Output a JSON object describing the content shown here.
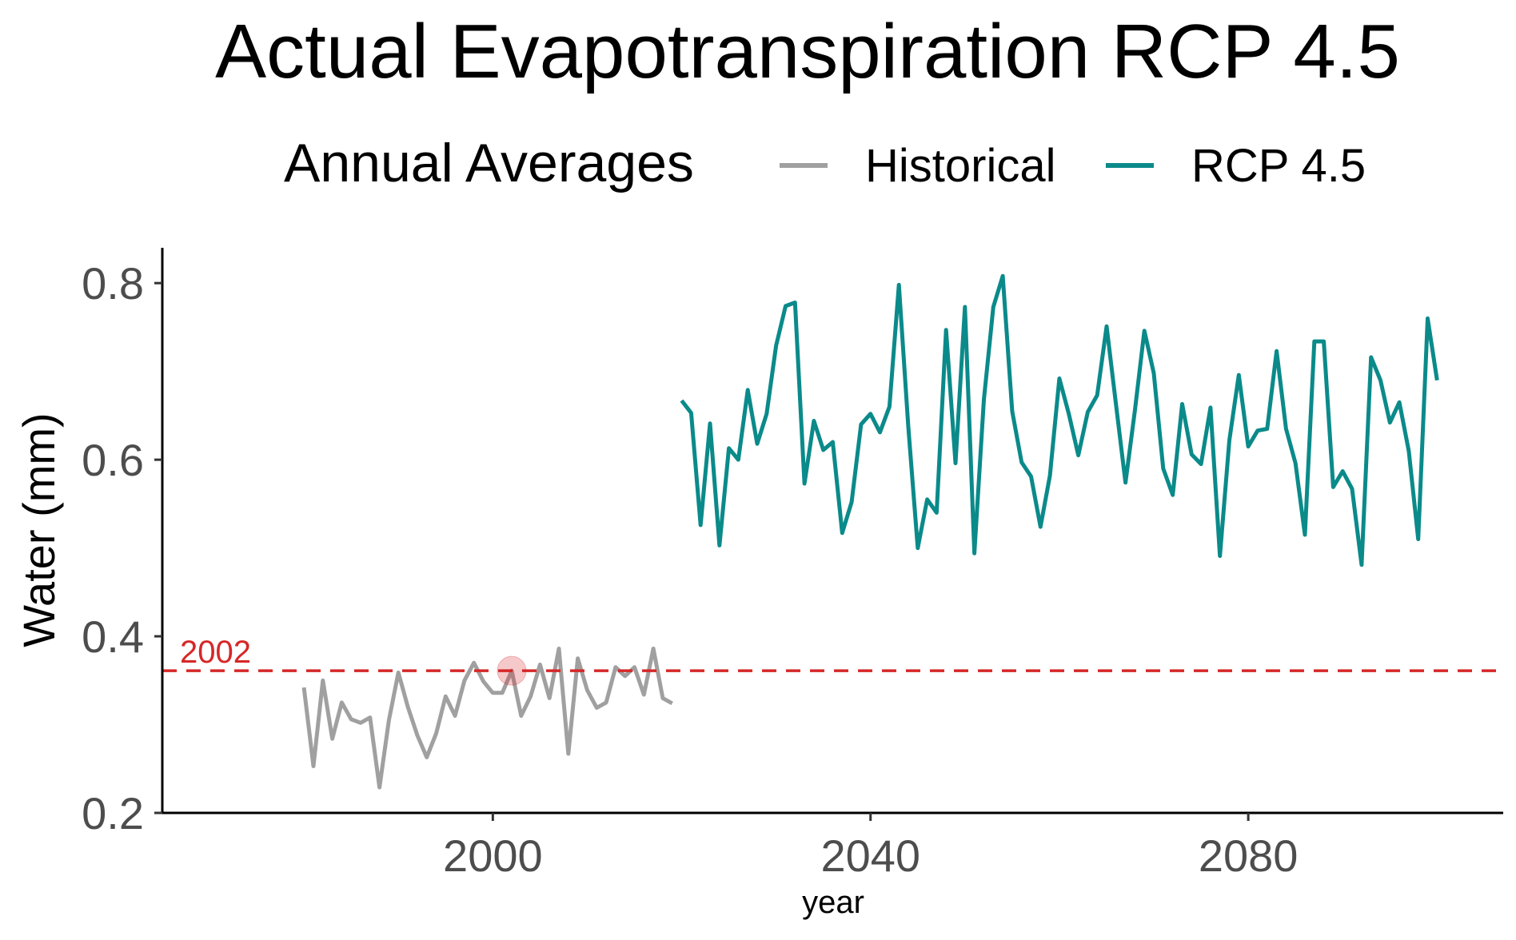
{
  "chart_data": {
    "type": "line",
    "title": "Actual Evapotranspiration RCP 4.5",
    "xlabel": "year",
    "ylabel": "Water (mm)",
    "xlim": [
      1965,
      2107
    ],
    "ylim": [
      0.2,
      0.84
    ],
    "x_ticks": [
      2000,
      2040,
      2080
    ],
    "y_ticks": [
      0.2,
      0.4,
      0.6,
      0.8
    ],
    "x_tick_labels": [
      "2000",
      "2040",
      "2080"
    ],
    "y_tick_labels": [
      "0.2",
      "0.4",
      "0.6",
      "0.8"
    ],
    "grid": false,
    "legend": {
      "title": "Annual Averages",
      "position": "top",
      "entries": [
        {
          "label": "Historical",
          "color": "#a0a0a0"
        },
        {
          "label": "RCP 4.5",
          "color": "#0b8a8a"
        }
      ]
    },
    "reference_line": {
      "y": 0.361,
      "label": "2002",
      "color": "#d62728",
      "style": "dashed"
    },
    "highlight_point": {
      "x": 2002,
      "y": 0.361,
      "color": "#d62728"
    },
    "series": [
      {
        "name": "Historical",
        "color": "#a0a0a0",
        "x": [
          1980,
          1981,
          1982,
          1983,
          1984,
          1985,
          1986,
          1987,
          1988,
          1989,
          1990,
          1991,
          1992,
          1993,
          1994,
          1995,
          1996,
          1997,
          1998,
          1999,
          2000,
          2001,
          2002,
          2003,
          2004,
          2005,
          2006,
          2007,
          2008,
          2009,
          2010,
          2011,
          2012,
          2013,
          2014,
          2015,
          2016,
          2017,
          2018,
          2019
        ],
        "y": [
          0.342,
          0.253,
          0.35,
          0.284,
          0.325,
          0.306,
          0.302,
          0.308,
          0.229,
          0.305,
          0.359,
          0.32,
          0.288,
          0.263,
          0.29,
          0.332,
          0.31,
          0.35,
          0.37,
          0.349,
          0.336,
          0.336,
          0.361,
          0.31,
          0.332,
          0.368,
          0.33,
          0.386,
          0.267,
          0.375,
          0.339,
          0.319,
          0.325,
          0.365,
          0.355,
          0.365,
          0.334,
          0.386,
          0.33,
          0.324
        ]
      },
      {
        "name": "RCP 4.5",
        "color": "#0b8a8a",
        "x": [
          2020,
          2021,
          2022,
          2023,
          2024,
          2025,
          2026,
          2027,
          2028,
          2029,
          2030,
          2031,
          2032,
          2033,
          2034,
          2035,
          2036,
          2037,
          2038,
          2039,
          2040,
          2041,
          2042,
          2043,
          2044,
          2045,
          2046,
          2047,
          2048,
          2049,
          2050,
          2051,
          2052,
          2053,
          2054,
          2055,
          2056,
          2057,
          2058,
          2059,
          2060,
          2061,
          2062,
          2063,
          2064,
          2065,
          2066,
          2067,
          2068,
          2069,
          2070,
          2071,
          2072,
          2073,
          2074,
          2075,
          2076,
          2077,
          2078,
          2079,
          2080,
          2081,
          2082,
          2083,
          2084,
          2085,
          2086,
          2087,
          2088,
          2089,
          2090,
          2091,
          2092,
          2093,
          2094,
          2095,
          2096,
          2097,
          2098,
          2099,
          2100
        ],
        "y": [
          0.667,
          0.653,
          0.526,
          0.641,
          0.503,
          0.613,
          0.6,
          0.679,
          0.618,
          0.652,
          0.729,
          0.774,
          0.778,
          0.573,
          0.644,
          0.611,
          0.62,
          0.517,
          0.552,
          0.64,
          0.652,
          0.631,
          0.66,
          0.798,
          0.637,
          0.5,
          0.555,
          0.54,
          0.747,
          0.596,
          0.773,
          0.494,
          0.668,
          0.773,
          0.808,
          0.655,
          0.597,
          0.581,
          0.524,
          0.582,
          0.692,
          0.652,
          0.605,
          0.654,
          0.673,
          0.751,
          0.662,
          0.574,
          0.656,
          0.746,
          0.698,
          0.59,
          0.56,
          0.663,
          0.606,
          0.595,
          0.659,
          0.491,
          0.622,
          0.696,
          0.615,
          0.633,
          0.635,
          0.723,
          0.635,
          0.596,
          0.515,
          0.734,
          0.734,
          0.569,
          0.587,
          0.567,
          0.481,
          0.716,
          0.69,
          0.642,
          0.665,
          0.61,
          0.51,
          0.76,
          0.69
        ]
      }
    ]
  }
}
